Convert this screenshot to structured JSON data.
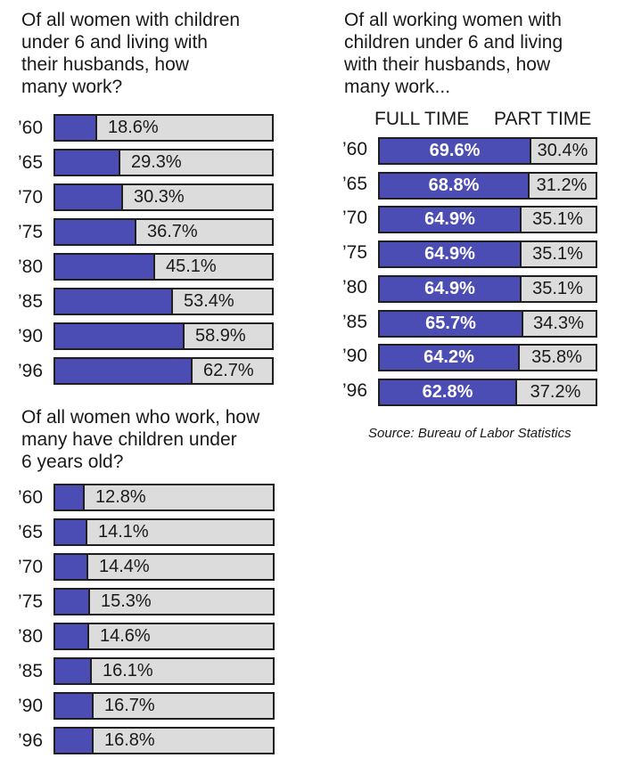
{
  "chart_data": [
    {
      "type": "bar",
      "title": "Of all women with children\nunder 6 and living with\ntheir husbands, how\nmany work?",
      "categories": [
        "’60",
        "’65",
        "’70",
        "’75",
        "’80",
        "’85",
        "’90",
        "’96"
      ],
      "values": [
        18.6,
        29.3,
        30.3,
        36.7,
        45.1,
        53.4,
        58.9,
        62.7
      ],
      "labels": [
        "18.6%",
        "29.3%",
        "30.3%",
        "36.7%",
        "45.1%",
        "53.4%",
        "58.9%",
        "62.7%"
      ],
      "xlim": [
        0,
        100
      ],
      "colors": {
        "fill": "#4c4cb5",
        "track": "#dcdcdc"
      }
    },
    {
      "type": "bar",
      "title": "Of all women who work, how\nmany have children under\n6 years old?",
      "categories": [
        "’60",
        "’65",
        "’70",
        "’75",
        "’80",
        "’85",
        "’90",
        "’96"
      ],
      "values": [
        12.8,
        14.1,
        14.4,
        15.3,
        14.6,
        16.1,
        16.7,
        16.8
      ],
      "labels": [
        "12.8%",
        "14.1%",
        "14.4%",
        "15.3%",
        "14.6%",
        "16.1%",
        "16.7%",
        "16.8%"
      ],
      "xlim": [
        0,
        100
      ],
      "colors": {
        "fill": "#4c4cb5",
        "track": "#dcdcdc"
      }
    },
    {
      "type": "bar",
      "stacked": true,
      "title": "Of all working women with\nchildren under 6 and living\nwith their husbands, how\nmany work...",
      "categories": [
        "’60",
        "’65",
        "’70",
        "’75",
        "’80",
        "’85",
        "’90",
        "’96"
      ],
      "series": [
        {
          "name": "FULL TIME",
          "values": [
            69.6,
            68.8,
            64.9,
            64.9,
            64.9,
            65.7,
            64.2,
            62.8
          ],
          "labels": [
            "69.6%",
            "68.8%",
            "64.9%",
            "64.9%",
            "64.9%",
            "65.7%",
            "64.2%",
            "62.8%"
          ],
          "color": "#4c4cb5"
        },
        {
          "name": "PART TIME",
          "values": [
            30.4,
            31.2,
            35.1,
            35.1,
            35.1,
            34.3,
            35.8,
            37.2
          ],
          "labels": [
            "30.4%",
            "31.2%",
            "35.1%",
            "35.1%",
            "35.1%",
            "34.3%",
            "35.8%",
            "37.2%"
          ],
          "color": "#dcdcdc"
        }
      ],
      "xlim": [
        0,
        100
      ]
    }
  ],
  "source": "Source: Bureau of Labor Statistics"
}
